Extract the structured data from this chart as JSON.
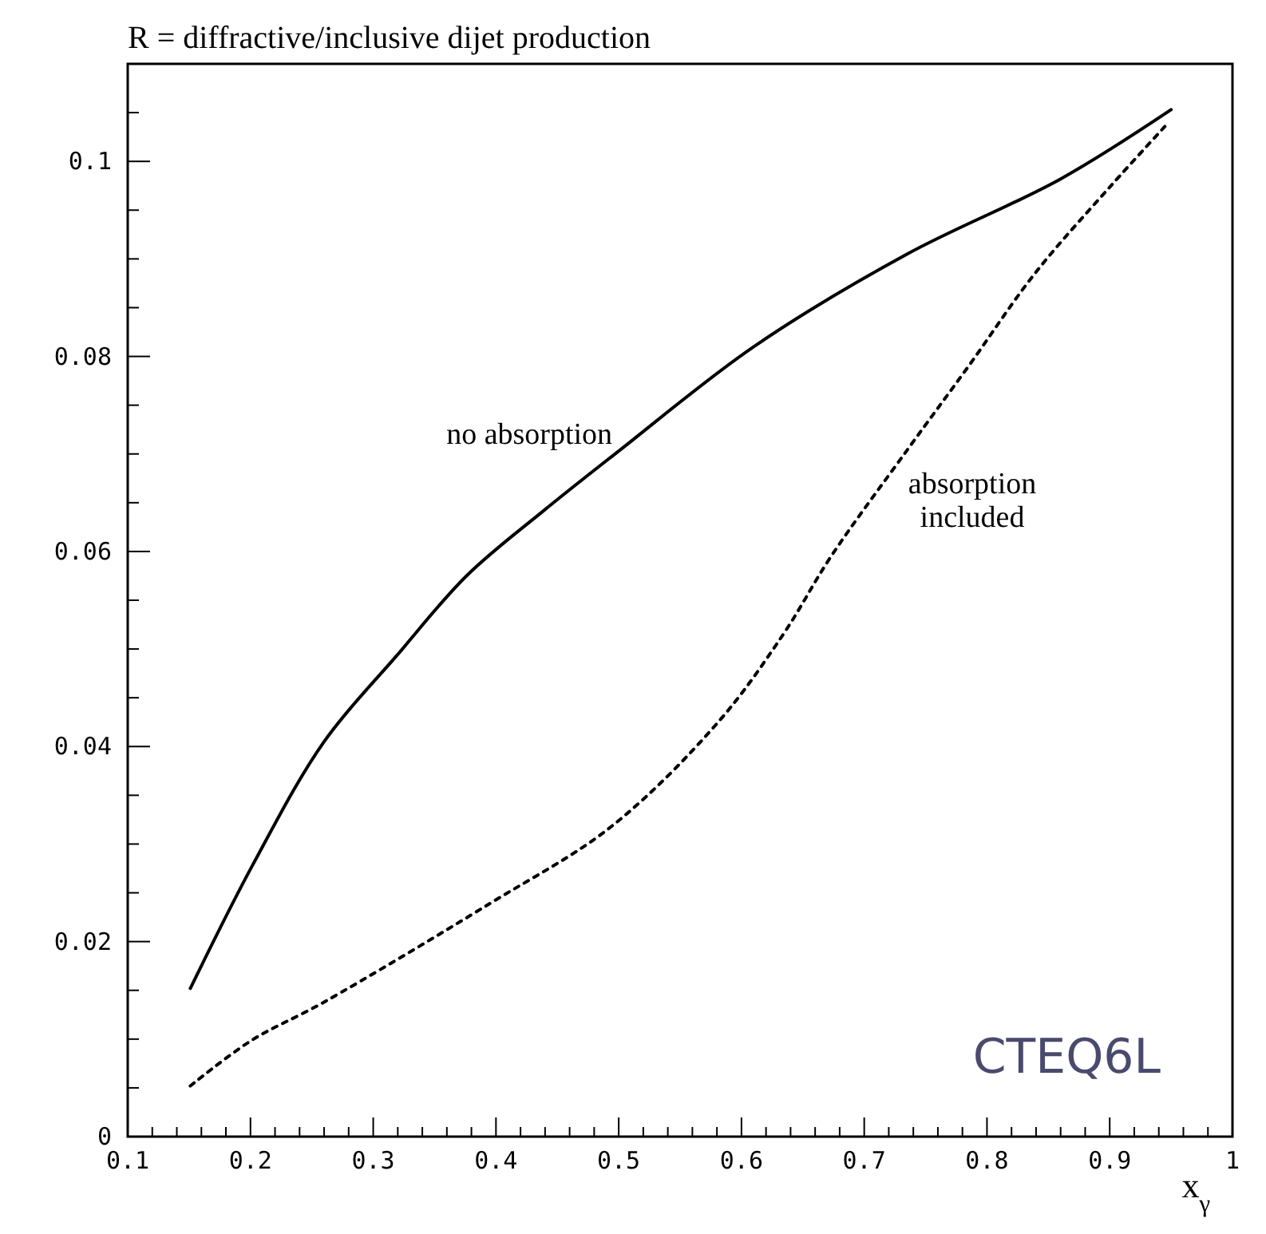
{
  "chart_data": {
    "type": "line",
    "title": "R = diffractive/inclusive dijet production",
    "xlabel": "x$_{γ}$",
    "xlim": [
      0.1,
      1.0
    ],
    "ylim": [
      0,
      0.11
    ],
    "xticks": [
      0.1,
      {
        "value": 0.12,
        "label": null
      },
      {
        "value": 0.14,
        "label": null
      },
      {
        "value": 0.16,
        "label": null
      },
      {
        "value": 0.18,
        "label": null
      },
      0.2,
      {
        "value": 0.22,
        "label": null
      },
      {
        "value": 0.24,
        "label": null
      },
      {
        "value": 0.26,
        "label": null
      },
      {
        "value": 0.28,
        "label": null
      },
      0.3,
      {
        "value": 0.32,
        "label": null
      },
      {
        "value": 0.34,
        "label": null
      },
      {
        "value": 0.36,
        "label": null
      },
      {
        "value": 0.38,
        "label": null
      },
      0.4,
      {
        "value": 0.42,
        "label": null
      },
      {
        "value": 0.44,
        "label": null
      },
      {
        "value": 0.46,
        "label": null
      },
      {
        "value": 0.48,
        "label": null
      },
      0.5,
      {
        "value": 0.52,
        "label": null
      },
      {
        "value": 0.54,
        "label": null
      },
      {
        "value": 0.56,
        "label": null
      },
      {
        "value": 0.58,
        "label": null
      },
      0.6,
      {
        "value": 0.62,
        "label": null
      },
      {
        "value": 0.64,
        "label": null
      },
      {
        "value": 0.66,
        "label": null
      },
      {
        "value": 0.68,
        "label": null
      },
      0.7,
      {
        "value": 0.72,
        "label": null
      },
      {
        "value": 0.74,
        "label": null
      },
      {
        "value": 0.76,
        "label": null
      },
      {
        "value": 0.78,
        "label": null
      },
      0.8,
      {
        "value": 0.82,
        "label": null
      },
      {
        "value": 0.84,
        "label": null
      },
      {
        "value": 0.86,
        "label": null
      },
      {
        "value": 0.88,
        "label": null
      },
      0.9,
      {
        "value": 0.92,
        "label": null
      },
      {
        "value": 0.94,
        "label": null
      },
      {
        "value": 0.96,
        "label": null
      },
      {
        "value": 0.98,
        "label": null
      },
      1
    ],
    "yticks": [
      0,
      {
        "value": 0.005,
        "label": null
      },
      {
        "value": 0.01,
        "label": null
      },
      {
        "value": 0.015,
        "label": null
      },
      0.02,
      {
        "value": 0.025,
        "label": null
      },
      {
        "value": 0.03,
        "label": null
      },
      {
        "value": 0.035,
        "label": null
      },
      0.04,
      {
        "value": 0.045,
        "label": null
      },
      {
        "value": 0.05,
        "label": null
      },
      {
        "value": 0.055,
        "label": null
      },
      0.06,
      {
        "value": 0.065,
        "label": null
      },
      {
        "value": 0.07,
        "label": null
      },
      {
        "value": 0.075,
        "label": null
      },
      0.08,
      {
        "value": 0.085,
        "label": null
      },
      {
        "value": 0.09,
        "label": null
      },
      {
        "value": 0.095,
        "label": null
      },
      0.1,
      {
        "value": 0.105,
        "label": null
      }
    ],
    "grid": false,
    "marker": "none",
    "series": [
      {
        "color": "#000000",
        "line_style": "solid",
        "x": [
          0.151,
          0.202,
          0.26,
          0.319,
          0.376,
          0.439,
          0.501,
          0.61,
          0.735,
          0.86,
          0.95
        ],
        "values": [
          0.0152,
          0.0279,
          0.0405,
          0.0493,
          0.0575,
          0.0642,
          0.0704,
          0.081,
          0.0905,
          0.0982,
          0.1053
        ]
      },
      {
        "color": "#000000",
        "line_style": "dotted",
        "x": [
          0.151,
          0.2,
          0.26,
          0.395,
          0.494,
          0.581,
          0.634,
          0.673,
          0.735,
          0.785,
          0.839,
          0.901,
          0.948
        ],
        "values": [
          0.0052,
          0.0098,
          0.0138,
          0.0239,
          0.0318,
          0.0425,
          0.0515,
          0.0595,
          0.0704,
          0.079,
          0.0885,
          0.0975,
          0.104
        ]
      }
    ],
    "annotations": [
      {
        "text": "no absorption",
        "x": 0.5,
        "y": 0.0704
      },
      {
        "text": "absorption\nincluded",
        "x": 0.71,
        "y": 0.066
      },
      "CTEQ6L"
    ]
  }
}
